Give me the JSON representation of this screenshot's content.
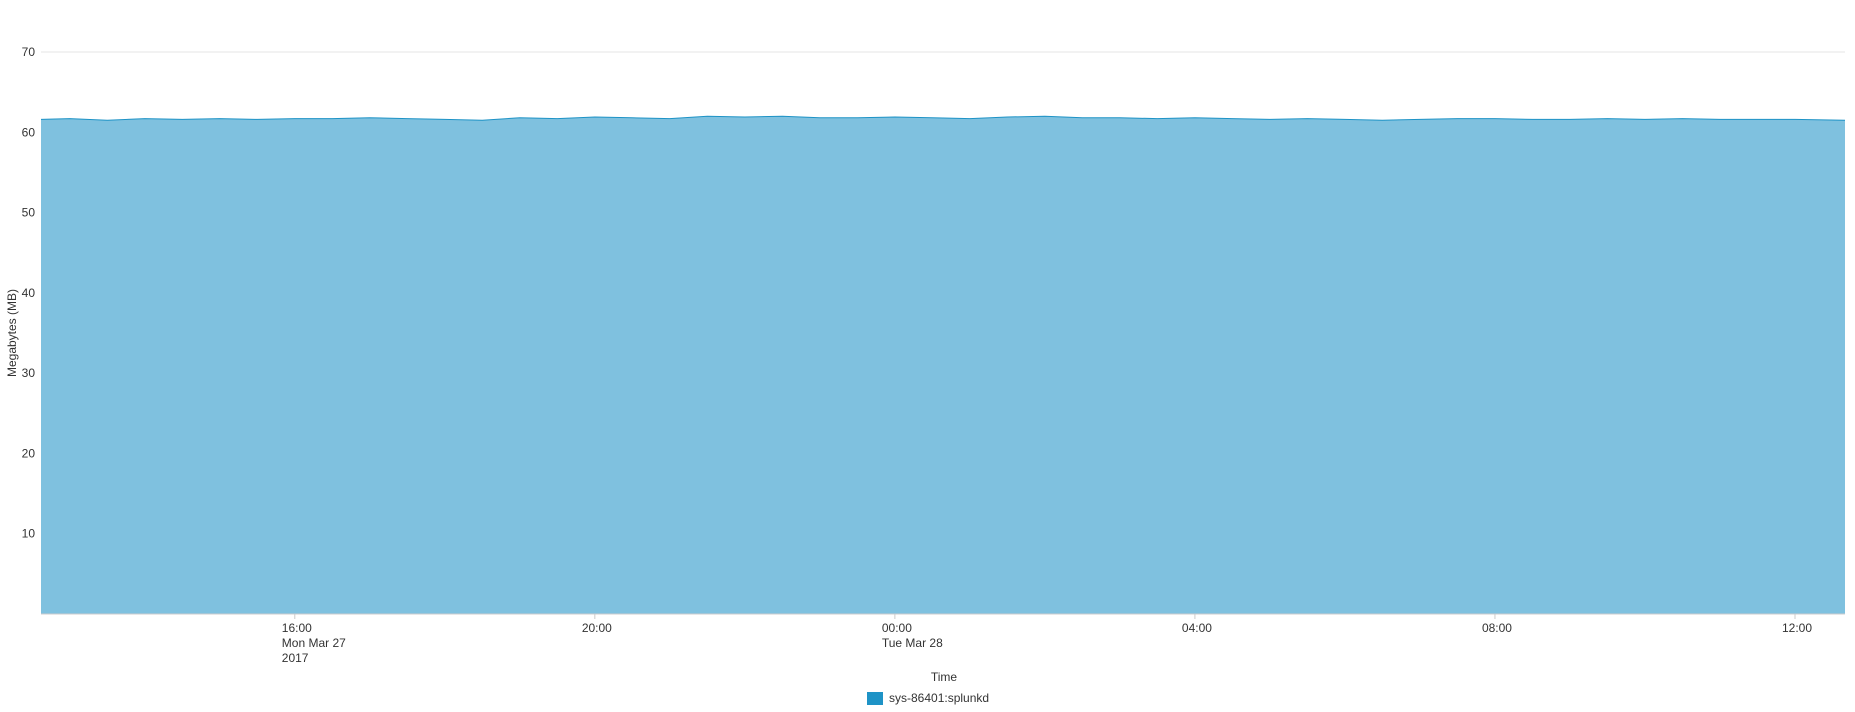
{
  "chart_data": {
    "type": "area",
    "title": "",
    "xlabel": "Time",
    "ylabel": "Megabytes (MB)",
    "ylim": [
      0,
      70
    ],
    "y_ticks": [
      10,
      20,
      30,
      40,
      50,
      60,
      70
    ],
    "x_range": [
      "2017-03-27T12:37",
      "2017-03-28T12:40"
    ],
    "x_ticks": [
      {
        "time": "2017-03-27T16:00",
        "lines": [
          "16:00",
          "Mon Mar 27",
          "2017"
        ]
      },
      {
        "time": "2017-03-27T20:00",
        "lines": [
          "20:00"
        ]
      },
      {
        "time": "2017-03-28T00:00",
        "lines": [
          "00:00",
          "Tue Mar 28"
        ]
      },
      {
        "time": "2017-03-28T04:00",
        "lines": [
          "04:00"
        ]
      },
      {
        "time": "2017-03-28T08:00",
        "lines": [
          "08:00"
        ]
      },
      {
        "time": "2017-03-28T12:00",
        "lines": [
          "12:00"
        ]
      }
    ],
    "grid": true,
    "legend_position": "bottom",
    "series": [
      {
        "name": "sys-86401:splunkd",
        "color": "#1e93c6",
        "fill_color": "#7fc1df",
        "points": [
          [
            "2017-03-27T12:37",
            61.6
          ],
          [
            "2017-03-27T13:00",
            61.7
          ],
          [
            "2017-03-27T13:30",
            61.5
          ],
          [
            "2017-03-27T14:00",
            61.7
          ],
          [
            "2017-03-27T14:30",
            61.6
          ],
          [
            "2017-03-27T15:00",
            61.7
          ],
          [
            "2017-03-27T15:30",
            61.6
          ],
          [
            "2017-03-27T16:00",
            61.7
          ],
          [
            "2017-03-27T16:30",
            61.7
          ],
          [
            "2017-03-27T17:00",
            61.8
          ],
          [
            "2017-03-27T17:30",
            61.7
          ],
          [
            "2017-03-27T18:00",
            61.6
          ],
          [
            "2017-03-27T18:30",
            61.5
          ],
          [
            "2017-03-27T19:00",
            61.8
          ],
          [
            "2017-03-27T19:30",
            61.7
          ],
          [
            "2017-03-27T20:00",
            61.9
          ],
          [
            "2017-03-27T20:30",
            61.8
          ],
          [
            "2017-03-27T21:00",
            61.7
          ],
          [
            "2017-03-27T21:30",
            62.0
          ],
          [
            "2017-03-27T22:00",
            61.9
          ],
          [
            "2017-03-27T22:30",
            62.0
          ],
          [
            "2017-03-27T23:00",
            61.8
          ],
          [
            "2017-03-27T23:30",
            61.8
          ],
          [
            "2017-03-28T00:00",
            61.9
          ],
          [
            "2017-03-28T00:30",
            61.8
          ],
          [
            "2017-03-28T01:00",
            61.7
          ],
          [
            "2017-03-28T01:30",
            61.9
          ],
          [
            "2017-03-28T02:00",
            62.0
          ],
          [
            "2017-03-28T02:30",
            61.8
          ],
          [
            "2017-03-28T03:00",
            61.8
          ],
          [
            "2017-03-28T03:30",
            61.7
          ],
          [
            "2017-03-28T04:00",
            61.8
          ],
          [
            "2017-03-28T04:30",
            61.7
          ],
          [
            "2017-03-28T05:00",
            61.6
          ],
          [
            "2017-03-28T05:30",
            61.7
          ],
          [
            "2017-03-28T06:00",
            61.6
          ],
          [
            "2017-03-28T06:30",
            61.5
          ],
          [
            "2017-03-28T07:00",
            61.6
          ],
          [
            "2017-03-28T07:30",
            61.7
          ],
          [
            "2017-03-28T08:00",
            61.7
          ],
          [
            "2017-03-28T08:30",
            61.6
          ],
          [
            "2017-03-28T09:00",
            61.6
          ],
          [
            "2017-03-28T09:30",
            61.7
          ],
          [
            "2017-03-28T10:00",
            61.6
          ],
          [
            "2017-03-28T10:30",
            61.7
          ],
          [
            "2017-03-28T11:00",
            61.6
          ],
          [
            "2017-03-28T11:30",
            61.6
          ],
          [
            "2017-03-28T12:00",
            61.6
          ],
          [
            "2017-03-28T12:40",
            61.5
          ]
        ]
      }
    ]
  }
}
